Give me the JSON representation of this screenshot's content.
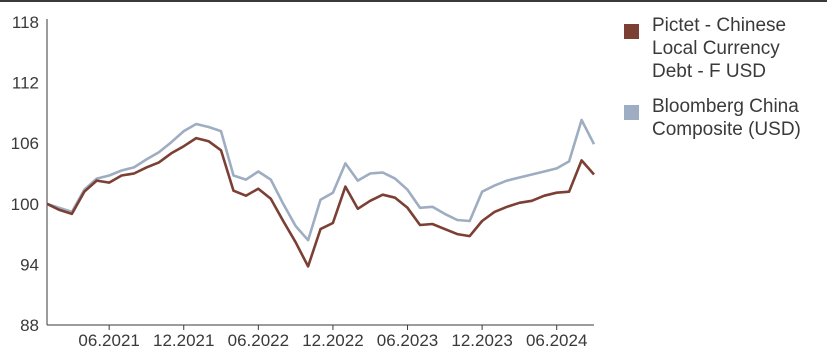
{
  "chart_data": {
    "type": "line",
    "title": "",
    "xlabel": "",
    "ylabel": "",
    "ylim": [
      88,
      118
    ],
    "yticks": [
      88,
      94,
      100,
      106,
      112,
      118
    ],
    "xticks": [
      "06.2021",
      "12.2021",
      "06.2022",
      "12.2022",
      "06.2023",
      "12.2023",
      "06.2024"
    ],
    "x_start": "2021-01",
    "x_end": "2024-09",
    "legend_position": "right",
    "grid": false,
    "series": [
      {
        "name": "Pictet - Chinese Local Currency Debt - F USD",
        "color": "#7b3f33",
        "x": [
          "2021-01",
          "2021-02",
          "2021-03",
          "2021-04",
          "2021-05",
          "2021-06",
          "2021-07",
          "2021-08",
          "2021-09",
          "2021-10",
          "2021-11",
          "2021-12",
          "2022-01",
          "2022-02",
          "2022-03",
          "2022-04",
          "2022-05",
          "2022-06",
          "2022-07",
          "2022-08",
          "2022-09",
          "2022-10",
          "2022-11",
          "2022-12",
          "2023-01",
          "2023-02",
          "2023-03",
          "2023-04",
          "2023-05",
          "2023-06",
          "2023-07",
          "2023-08",
          "2023-09",
          "2023-10",
          "2023-11",
          "2023-12",
          "2024-01",
          "2024-02",
          "2024-03",
          "2024-04",
          "2024-05",
          "2024-06",
          "2024-07",
          "2024-08",
          "2024-09"
        ],
        "values": [
          100.0,
          99.4,
          99.0,
          101.2,
          102.3,
          102.1,
          102.8,
          103.0,
          103.6,
          104.1,
          105.0,
          105.7,
          106.5,
          106.2,
          105.3,
          101.3,
          100.8,
          101.5,
          100.5,
          98.3,
          96.2,
          93.8,
          97.5,
          98.1,
          101.7,
          99.5,
          100.3,
          100.9,
          100.6,
          99.6,
          97.9,
          98.0,
          97.5,
          97.0,
          96.8,
          98.3,
          99.2,
          99.7,
          100.1,
          100.3,
          100.8,
          101.1,
          101.2,
          104.3,
          102.9
        ]
      },
      {
        "name": "Bloomberg China Composite (USD)",
        "color": "#9eadc1",
        "x": [
          "2021-01",
          "2021-02",
          "2021-03",
          "2021-04",
          "2021-05",
          "2021-06",
          "2021-07",
          "2021-08",
          "2021-09",
          "2021-10",
          "2021-11",
          "2021-12",
          "2022-01",
          "2022-02",
          "2022-03",
          "2022-04",
          "2022-05",
          "2022-06",
          "2022-07",
          "2022-08",
          "2022-09",
          "2022-10",
          "2022-11",
          "2022-12",
          "2023-01",
          "2023-02",
          "2023-03",
          "2023-04",
          "2023-05",
          "2023-06",
          "2023-07",
          "2023-08",
          "2023-09",
          "2023-10",
          "2023-11",
          "2023-12",
          "2024-01",
          "2024-02",
          "2024-03",
          "2024-04",
          "2024-05",
          "2024-06",
          "2024-07",
          "2024-08",
          "2024-09"
        ],
        "values": [
          100.0,
          99.6,
          99.2,
          101.4,
          102.5,
          102.8,
          103.3,
          103.6,
          104.4,
          105.1,
          106.1,
          107.2,
          107.9,
          107.6,
          107.2,
          102.8,
          102.4,
          103.2,
          102.4,
          100.0,
          97.8,
          96.4,
          100.4,
          101.1,
          104.0,
          102.3,
          103.0,
          103.1,
          102.5,
          101.4,
          99.6,
          99.7,
          99.0,
          98.4,
          98.3,
          101.2,
          101.8,
          102.3,
          102.6,
          102.9,
          103.2,
          103.5,
          104.2,
          108.3,
          105.9
        ]
      }
    ]
  }
}
